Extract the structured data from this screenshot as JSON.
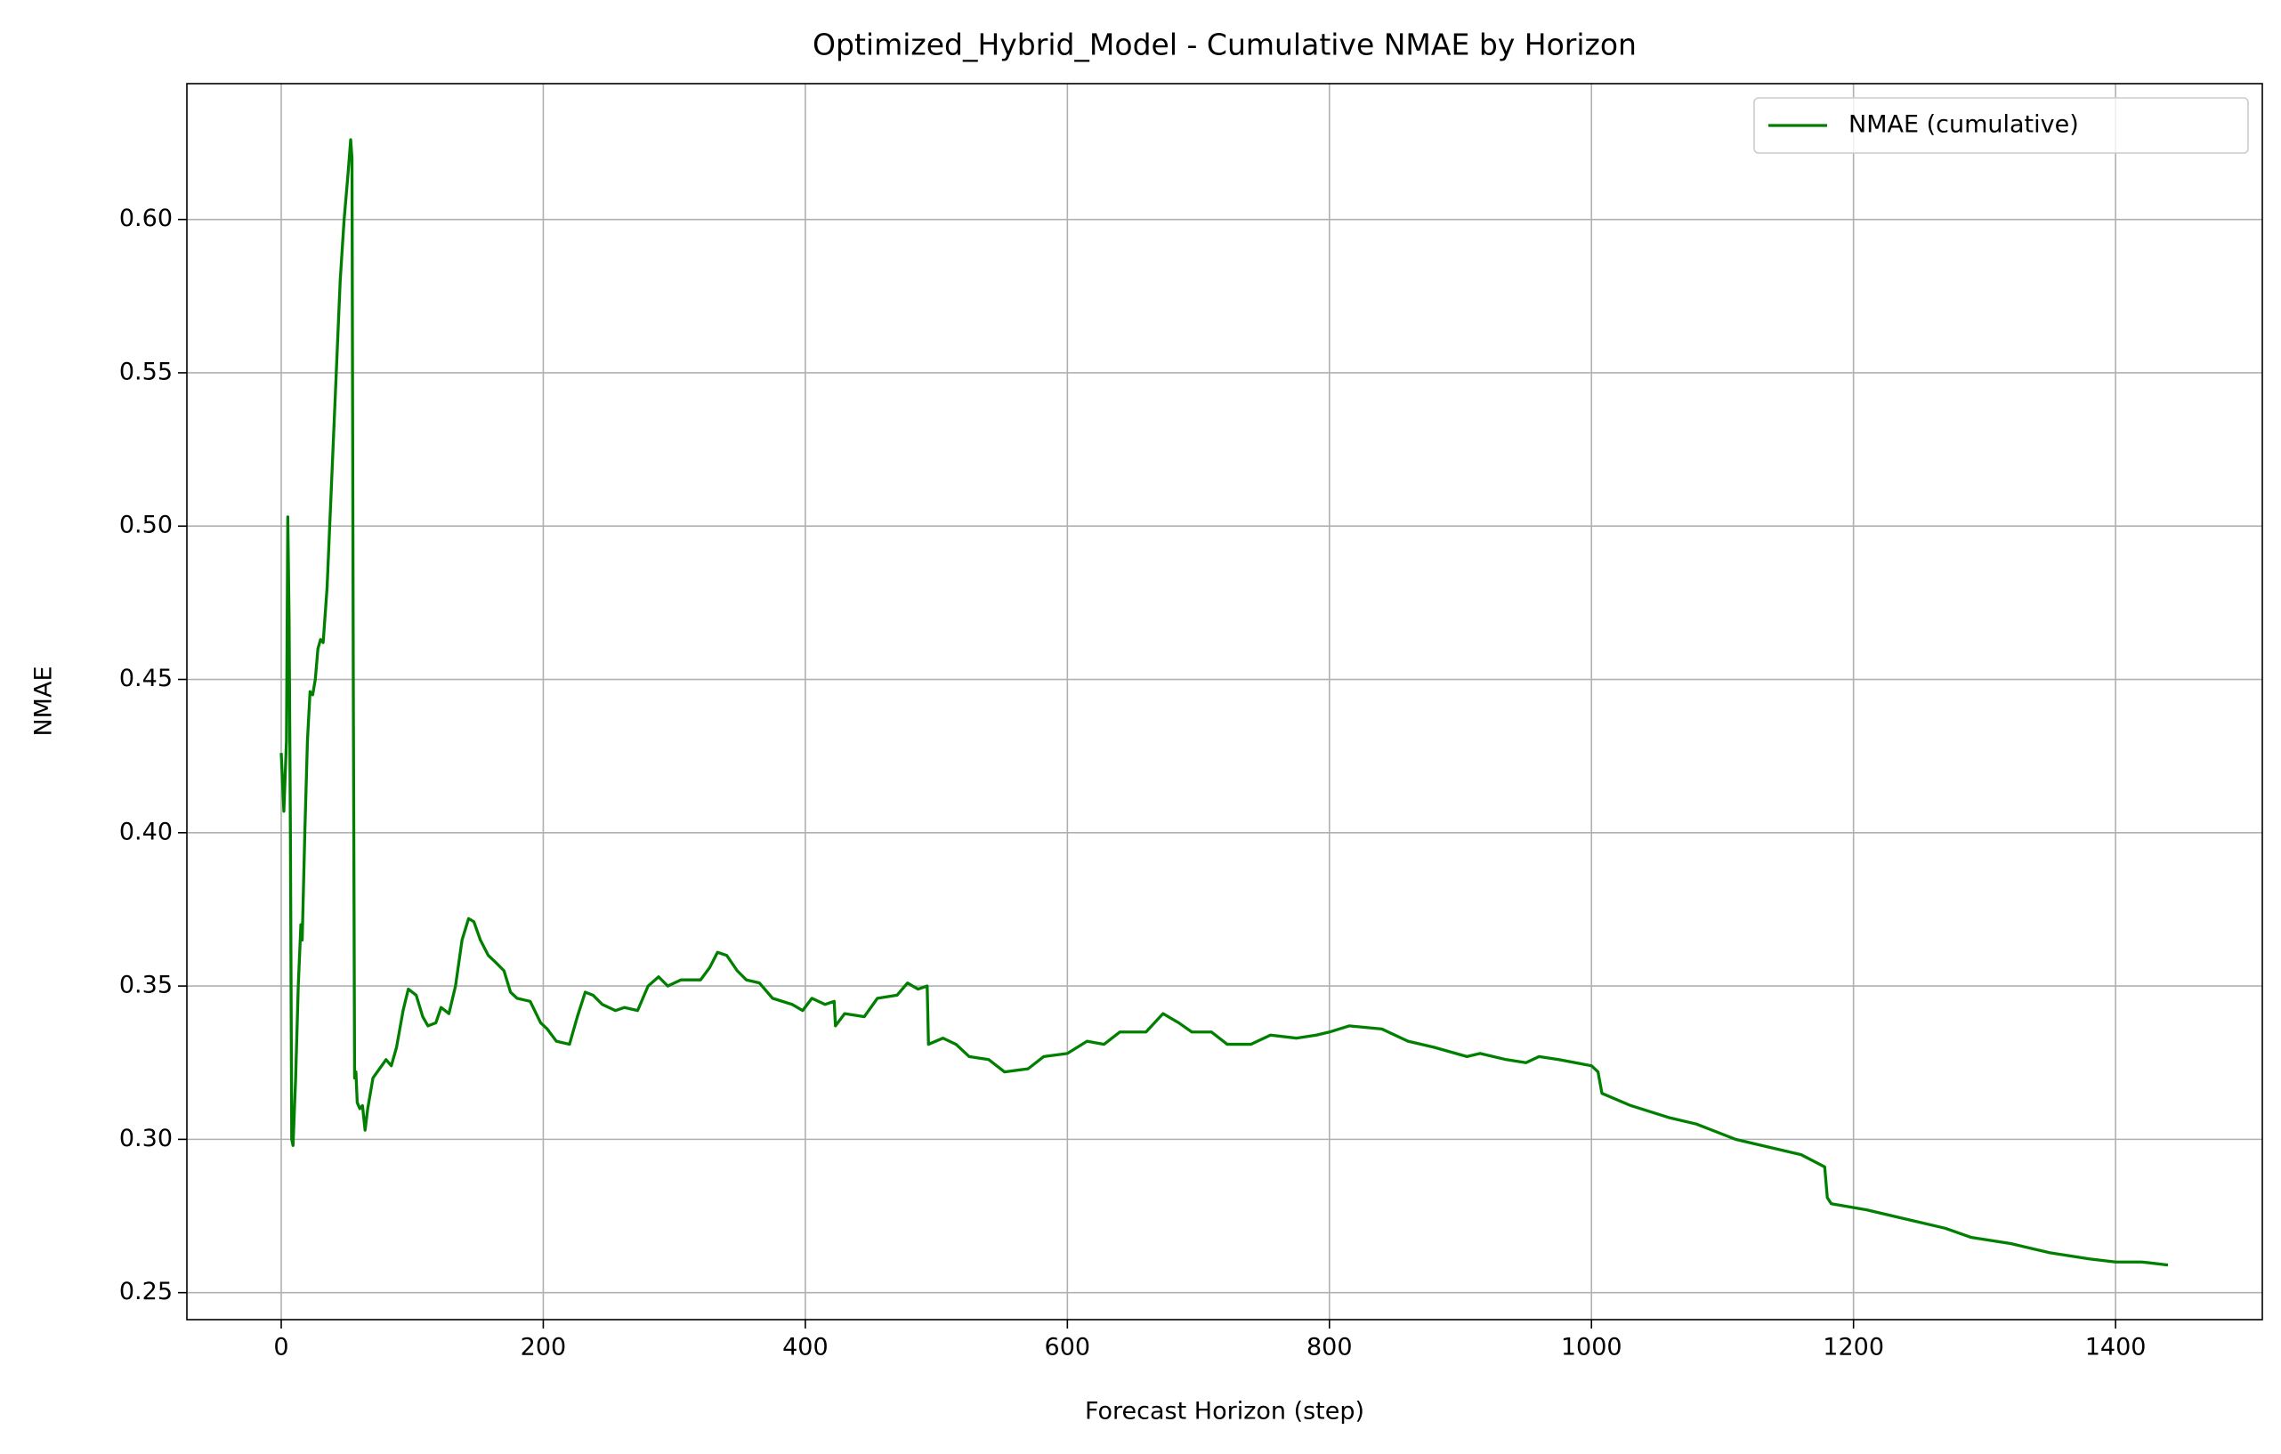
{
  "chart_data": {
    "type": "line",
    "title": "Optimized_Hybrid_Model - Cumulative NMAE by Horizon",
    "x_label": "Forecast Horizon (step)",
    "y_label": "NMAE",
    "x": [
      0,
      2,
      4,
      5,
      6,
      7,
      8,
      9,
      11,
      13,
      15,
      16,
      18,
      20,
      22,
      24,
      26,
      28,
      30,
      32,
      35,
      38,
      41,
      45,
      48,
      51,
      53,
      54,
      55,
      56,
      57,
      58,
      60,
      62,
      64,
      66,
      70,
      75,
      80,
      84,
      88,
      93,
      97,
      103,
      108,
      112,
      118,
      122,
      128,
      133,
      138,
      143,
      147,
      152,
      158,
      163,
      170,
      175,
      180,
      190,
      198,
      203,
      210,
      220,
      226,
      232,
      238,
      245,
      255,
      262,
      272,
      280,
      288,
      295,
      305,
      320,
      327,
      333,
      340,
      348,
      355,
      365,
      375,
      390,
      398,
      405,
      415,
      422,
      423,
      430,
      445,
      455,
      470,
      478,
      486,
      493,
      494,
      505,
      515,
      525,
      540,
      552,
      570,
      582,
      600,
      615,
      628,
      640,
      660,
      673,
      685,
      695,
      710,
      722,
      740,
      755,
      775,
      790,
      800,
      815,
      840,
      860,
      880,
      905,
      915,
      935,
      950,
      960,
      975,
      1000,
      1005,
      1008,
      1030,
      1060,
      1080,
      1110,
      1140,
      1160,
      1178,
      1180,
      1183,
      1210,
      1240,
      1270,
      1290,
      1320,
      1350,
      1380,
      1400,
      1420,
      1440
    ],
    "series": [
      {
        "name": "NMAE (cumulative)",
        "color": "#007f00",
        "values": [
          0.426,
          0.407,
          0.43,
          0.503,
          0.47,
          0.4,
          0.3,
          0.298,
          0.32,
          0.35,
          0.37,
          0.365,
          0.4,
          0.43,
          0.446,
          0.445,
          0.45,
          0.46,
          0.463,
          0.462,
          0.48,
          0.51,
          0.54,
          0.58,
          0.6,
          0.615,
          0.626,
          0.62,
          0.45,
          0.32,
          0.322,
          0.312,
          0.31,
          0.311,
          0.303,
          0.31,
          0.32,
          0.323,
          0.326,
          0.324,
          0.33,
          0.342,
          0.349,
          0.347,
          0.34,
          0.337,
          0.338,
          0.343,
          0.341,
          0.35,
          0.365,
          0.372,
          0.371,
          0.365,
          0.36,
          0.358,
          0.355,
          0.348,
          0.346,
          0.345,
          0.338,
          0.336,
          0.332,
          0.331,
          0.34,
          0.348,
          0.347,
          0.344,
          0.342,
          0.343,
          0.342,
          0.35,
          0.353,
          0.35,
          0.352,
          0.352,
          0.356,
          0.361,
          0.36,
          0.355,
          0.352,
          0.351,
          0.346,
          0.344,
          0.342,
          0.346,
          0.344,
          0.345,
          0.337,
          0.341,
          0.34,
          0.346,
          0.347,
          0.351,
          0.349,
          0.35,
          0.331,
          0.333,
          0.331,
          0.327,
          0.326,
          0.322,
          0.323,
          0.327,
          0.328,
          0.332,
          0.331,
          0.335,
          0.335,
          0.341,
          0.338,
          0.335,
          0.335,
          0.331,
          0.331,
          0.334,
          0.333,
          0.334,
          0.335,
          0.337,
          0.336,
          0.332,
          0.33,
          0.327,
          0.328,
          0.326,
          0.325,
          0.327,
          0.326,
          0.324,
          0.322,
          0.315,
          0.311,
          0.307,
          0.305,
          0.3,
          0.297,
          0.295,
          0.291,
          0.281,
          0.279,
          0.277,
          0.274,
          0.271,
          0.268,
          0.266,
          0.263,
          0.261,
          0.26,
          0.26,
          0.259
        ]
      }
    ],
    "xlim": [
      -72,
      1512
    ],
    "xticks": [
      0,
      200,
      400,
      600,
      800,
      1000,
      1200,
      1400
    ],
    "ylim": [
      0.2412,
      0.6443
    ],
    "yticks": [
      0.25,
      {
        "value": 0.3,
        "label": "0.30"
      },
      0.35,
      {
        "value": 0.4,
        "label": "0.40"
      },
      0.45,
      {
        "value": 0.5,
        "label": "0.50"
      },
      0.55,
      {
        "value": 0.6,
        "label": "0.60"
      }
    ],
    "grid": true,
    "legend": "upper right"
  }
}
